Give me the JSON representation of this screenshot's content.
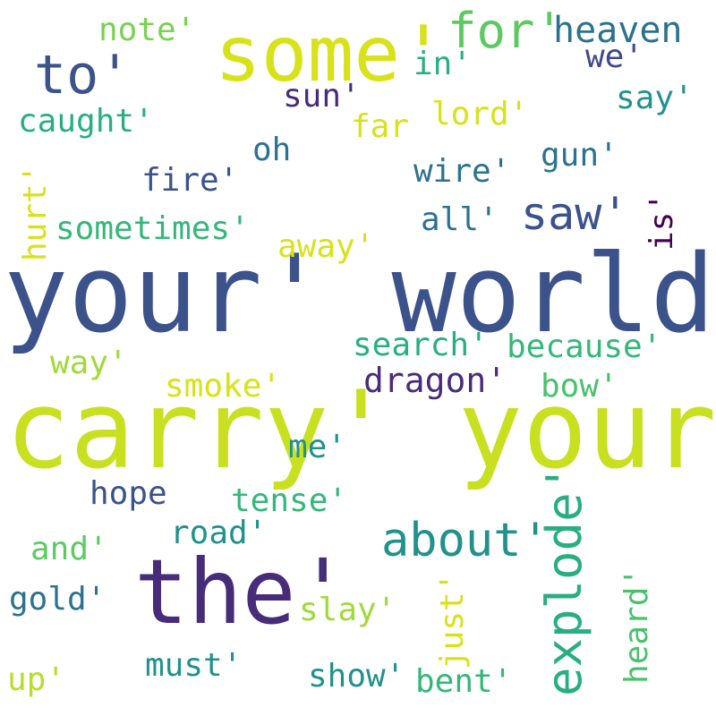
{
  "colors": {
    "background": "#ffffff",
    "navy": "#3b528b",
    "purple": "#472c7a",
    "dark_purple": "#440154",
    "lime": "#c8e020",
    "yellow_green": "#b5de2b",
    "green": "#5ec962",
    "light_green": "#7ad151",
    "teal": "#21918c",
    "teal_dark": "#2c728e",
    "teal_green": "#28ae80",
    "sea_green": "#35b779",
    "gold_green": "#d8e219"
  },
  "words": [
    {
      "text": "your' world'",
      "color": "#3b528b"
    },
    {
      "text": "carry' your'",
      "color": "#c8e020"
    },
    {
      "text": "the'",
      "color": "#472c7a"
    },
    {
      "text": "some'",
      "color": "#d8e219"
    },
    {
      "text": "to'",
      "color": "#3b528b"
    },
    {
      "text": "for'",
      "color": "#5ec962"
    },
    {
      "text": "heaven",
      "color": "#2c728e"
    },
    {
      "text": "note'",
      "color": "#7ad151"
    },
    {
      "text": "in'",
      "color": "#28ae80"
    },
    {
      "text": "we'",
      "color": "#3e4a89"
    },
    {
      "text": "sun'",
      "color": "#472c7a"
    },
    {
      "text": "lord'",
      "color": "#d8e219"
    },
    {
      "text": "say'",
      "color": "#21918c"
    },
    {
      "text": "caught'",
      "color": "#28ae80"
    },
    {
      "text": "far",
      "color": "#d8e219"
    },
    {
      "text": "oh",
      "color": "#2c728e"
    },
    {
      "text": "gun'",
      "color": "#2c728e"
    },
    {
      "text": "fire'",
      "color": "#3b528b"
    },
    {
      "text": "wire'",
      "color": "#2c728e"
    },
    {
      "text": "hurt'",
      "color": "#d8e219"
    },
    {
      "text": "saw'",
      "color": "#3b528b"
    },
    {
      "text": "all'",
      "color": "#2c728e"
    },
    {
      "text": "is'",
      "color": "#440154"
    },
    {
      "text": "sometimes'",
      "color": "#35b779"
    },
    {
      "text": "away'",
      "color": "#d8e219"
    },
    {
      "text": "search'",
      "color": "#28ae80"
    },
    {
      "text": "because'",
      "color": "#35b779"
    },
    {
      "text": "way'",
      "color": "#a0da39"
    },
    {
      "text": "dragon'",
      "color": "#472c7a"
    },
    {
      "text": "smoke'",
      "color": "#d8e219"
    },
    {
      "text": "bow'",
      "color": "#4ac16d"
    },
    {
      "text": "me'",
      "color": "#21918c"
    },
    {
      "text": "hope",
      "color": "#3b528b"
    },
    {
      "text": "tense'",
      "color": "#35b779"
    },
    {
      "text": "explode'",
      "color": "#28ae80"
    },
    {
      "text": "about'",
      "color": "#21918c"
    },
    {
      "text": "road'",
      "color": "#21918c"
    },
    {
      "text": "and'",
      "color": "#5ec962"
    },
    {
      "text": "just'",
      "color": "#d8e219"
    },
    {
      "text": "heard'",
      "color": "#4ac16d"
    },
    {
      "text": "gold'",
      "color": "#2c728e"
    },
    {
      "text": "slay'",
      "color": "#a0da39"
    },
    {
      "text": "must'",
      "color": "#21918c"
    },
    {
      "text": "show'",
      "color": "#21918c"
    },
    {
      "text": "up'",
      "color": "#b5de2b"
    },
    {
      "text": "bent'",
      "color": "#35b779"
    }
  ]
}
